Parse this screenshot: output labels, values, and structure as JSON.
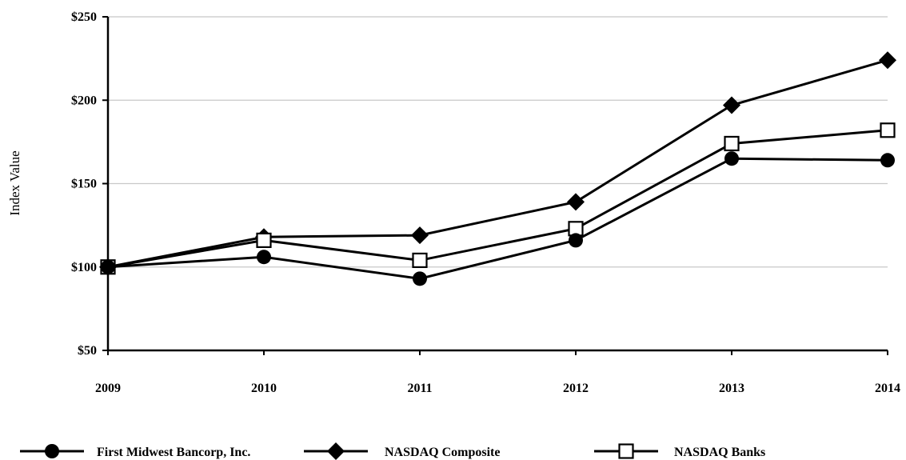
{
  "chart_data": {
    "type": "line",
    "title": "",
    "xlabel": "",
    "ylabel": "Index Value",
    "x": [
      "2009",
      "2010",
      "2011",
      "2012",
      "2013",
      "2014"
    ],
    "ylim": [
      50,
      250
    ],
    "yticks": [
      50,
      100,
      150,
      200,
      250
    ],
    "ytick_labels": [
      "$50",
      "$100",
      "$150",
      "$200",
      "$250"
    ],
    "grid": true,
    "legend_position": "bottom",
    "series": [
      {
        "name": "First Midwest Bancorp, Inc.",
        "marker": "filled-circle",
        "color": "#000000",
        "values": [
          100,
          106,
          93,
          116,
          165,
          164
        ]
      },
      {
        "name": "NASDAQ Composite",
        "marker": "filled-diamond",
        "color": "#000000",
        "values": [
          100,
          118,
          119,
          139,
          197,
          224
        ]
      },
      {
        "name": "NASDAQ Banks",
        "marker": "open-square",
        "color": "#000000",
        "values": [
          100,
          116,
          104,
          123,
          174,
          182
        ]
      }
    ]
  }
}
